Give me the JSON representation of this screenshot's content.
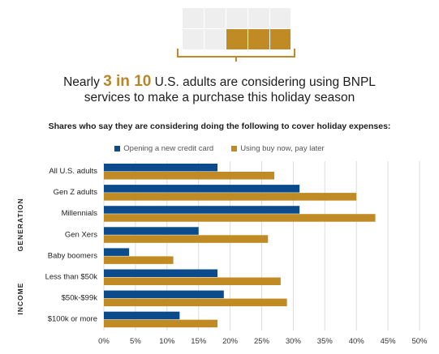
{
  "headline": {
    "prefix": "Nearly ",
    "highlight": "3 in 10",
    "suffix": " U.S. adults are considering using BNPL services to make a purchase this holiday season"
  },
  "grid_icon": {
    "total_cells": 10,
    "filled_cells": 3
  },
  "subtitle": "Shares who say they are considering doing the following to cover holiday expenses:",
  "colors": {
    "credit_card": "#0b4a8b",
    "bnpl": "#c08a24",
    "grid_empty": "#eeeeee",
    "grid_filled": "#c08a24"
  },
  "chart_data": {
    "type": "bar",
    "orientation": "horizontal",
    "categories": [
      "All U.S. adults",
      "Gen Z adults",
      "Millennials",
      "Gen Xers",
      "Baby boomers",
      "Less than $50k",
      "$50k-$99k",
      "$100k or more"
    ],
    "groups": [
      {
        "label": "GENERATION",
        "categories": [
          "Gen Z adults",
          "Millennials",
          "Gen Xers",
          "Baby boomers"
        ]
      },
      {
        "label": "INCOME",
        "categories": [
          "Less than $50k",
          "$50k-$99k",
          "$100k or more"
        ]
      }
    ],
    "series": [
      {
        "name": "Opening a new credit card",
        "values": [
          18,
          31,
          31,
          15,
          4,
          18,
          19,
          12
        ]
      },
      {
        "name": "Using buy now, pay later",
        "values": [
          27,
          40,
          43,
          26,
          11,
          28,
          29,
          18
        ]
      }
    ],
    "xlim": [
      0,
      50
    ],
    "xticks": [
      "0%",
      "5%",
      "10%",
      "15%",
      "20%",
      "25%",
      "30%",
      "35%",
      "40%",
      "45%",
      "50%"
    ],
    "grid": true,
    "legend_position": "top"
  }
}
